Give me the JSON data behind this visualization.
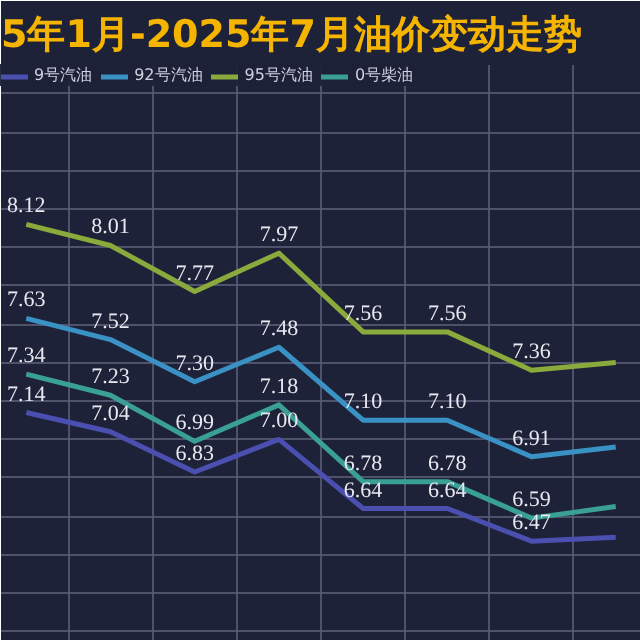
{
  "chart_data": {
    "type": "line",
    "title": "5年1月-2025年7月油价变动走势",
    "categories": [
      null,
      null,
      null,
      null,
      null,
      null,
      null,
      null
    ],
    "series": [
      {
        "name": "9号汽油",
        "color": "#4a4fb0",
        "values": [
          7.14,
          7.04,
          6.83,
          7.0,
          6.64,
          6.64,
          6.47,
          6.49
        ],
        "value_labels": [
          "7.14",
          "7.04",
          "6.83",
          "7.00",
          "6.64",
          "6.64",
          "6.47",
          null
        ]
      },
      {
        "name": "92号汽油",
        "color": "#3a92c4",
        "values": [
          7.63,
          7.52,
          7.3,
          7.48,
          7.1,
          7.1,
          6.91,
          6.96
        ],
        "value_labels": [
          "7.63",
          "7.52",
          "7.30",
          "7.48",
          "7.10",
          "7.10",
          "6.91",
          null
        ]
      },
      {
        "name": "95号汽油",
        "color": "#8aaa3c",
        "values": [
          8.12,
          8.01,
          7.77,
          7.97,
          7.56,
          7.56,
          7.36,
          7.4
        ],
        "value_labels": [
          "8.12",
          "8.01",
          "7.77",
          "7.97",
          "7.56",
          "7.56",
          "7.36",
          null
        ]
      },
      {
        "name": "0号柴油",
        "color": "#3aa096",
        "values": [
          7.34,
          7.23,
          6.99,
          7.18,
          6.78,
          6.78,
          6.59,
          6.65
        ],
        "value_labels": [
          "7.34",
          "7.23",
          "6.99",
          "7.18",
          "6.78",
          "6.78",
          "6.59",
          null
        ]
      }
    ],
    "ylim": [
      5.95,
      8.95
    ],
    "yticks": [
      {
        "value": 6.0,
        "label": null
      },
      {
        "value": 6.2,
        "label": null
      },
      {
        "value": 6.4,
        "label": null
      },
      {
        "value": 6.6,
        "label": null
      },
      {
        "value": 6.8,
        "label": null
      },
      {
        "value": 7.0,
        "label": null
      },
      {
        "value": 7.2,
        "label": null
      },
      {
        "value": 7.4,
        "label": null
      },
      {
        "value": 7.6,
        "label": null
      },
      {
        "value": 7.8,
        "label": null
      },
      {
        "value": 8.0,
        "label": null
      },
      {
        "value": 8.2,
        "label": null
      },
      {
        "value": 8.4,
        "label": null
      },
      {
        "value": 8.6,
        "label": null
      },
      {
        "value": 8.8,
        "label": null
      }
    ],
    "tick_labels": false,
    "grid": true,
    "legend": "top left",
    "line_style": "solid"
  }
}
